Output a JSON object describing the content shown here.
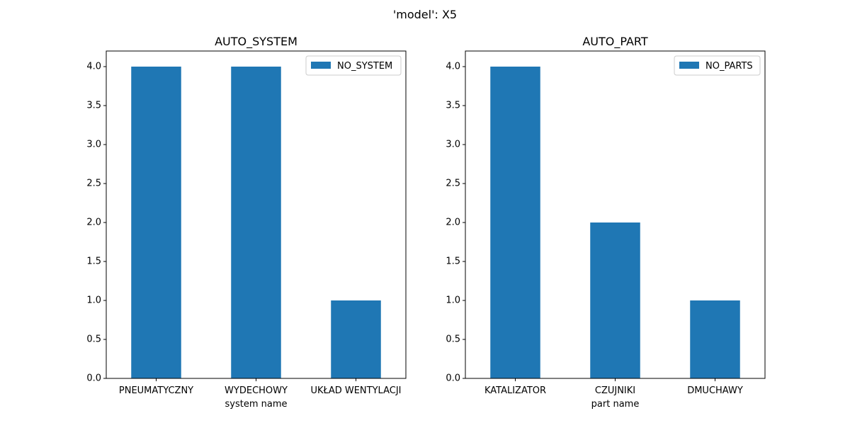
{
  "suptitle": "'model': X5",
  "bar_color": "#1f77b4",
  "chart_data": [
    {
      "type": "bar",
      "title": "AUTO_SYSTEM",
      "xlabel": "system name",
      "ylabel": "",
      "categories": [
        "PNEUMATYCZNY",
        "WYDECHOWY",
        "UKŁAD WENTYLACJI"
      ],
      "series": [
        {
          "name": "NO_SYSTEM",
          "values": [
            4,
            4,
            1
          ]
        }
      ],
      "ylim": [
        0,
        4.2
      ],
      "yticks": [
        "0.0",
        "0.5",
        "1.0",
        "1.5",
        "2.0",
        "2.5",
        "3.0",
        "3.5",
        "4.0"
      ],
      "grid": false,
      "legend": "top-right"
    },
    {
      "type": "bar",
      "title": "AUTO_PART",
      "xlabel": "part name",
      "ylabel": "",
      "categories": [
        "KATALIZATOR",
        "CZUJNIKI",
        "DMUCHAWY"
      ],
      "series": [
        {
          "name": "NO_PARTS",
          "values": [
            4,
            2,
            1
          ]
        }
      ],
      "ylim": [
        0,
        4.2
      ],
      "yticks": [
        "0.0",
        "0.5",
        "1.0",
        "1.5",
        "2.0",
        "2.5",
        "3.0",
        "3.5",
        "4.0"
      ],
      "grid": false,
      "legend": "top-right"
    }
  ]
}
